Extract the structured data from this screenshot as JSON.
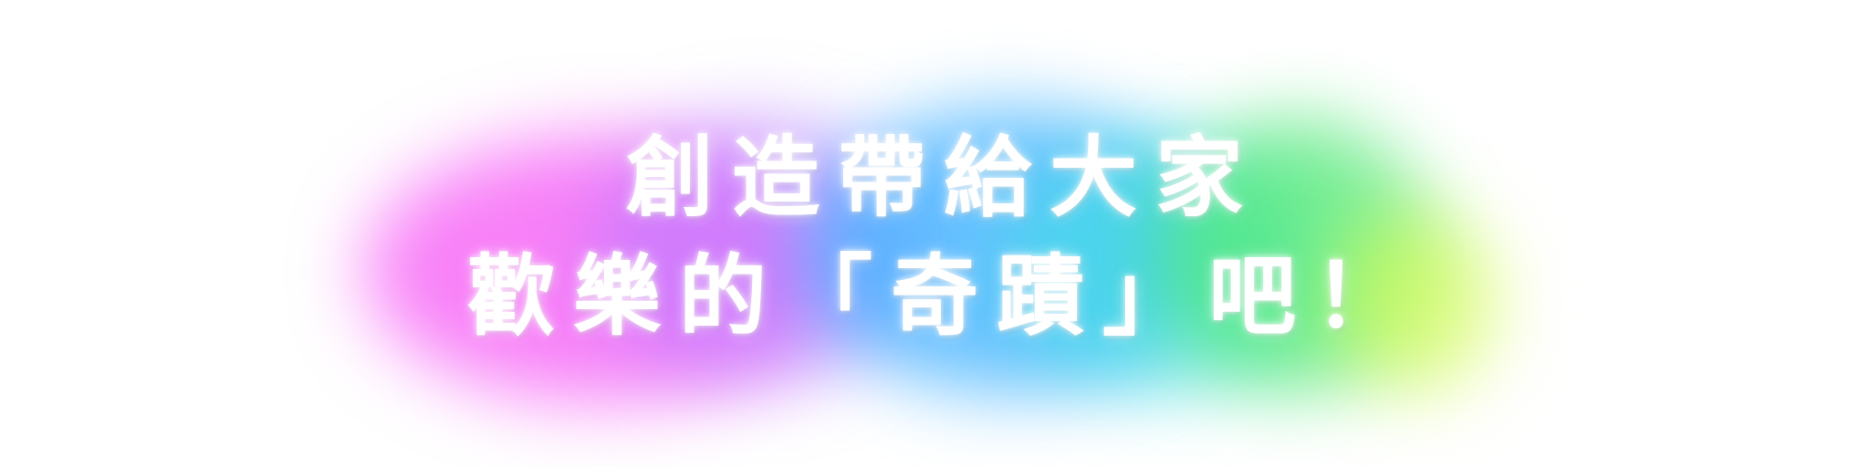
{
  "headline": {
    "line1": "創造帶給大家",
    "line2": "歡樂的「奇蹟」吧！"
  },
  "colors": {
    "text": "#ffffff",
    "background": "#ffffff",
    "glow": [
      "#f65cf6",
      "#b078ff",
      "#3cb0ff",
      "#3ce0e4",
      "#46e86e",
      "#d6fa50"
    ]
  }
}
